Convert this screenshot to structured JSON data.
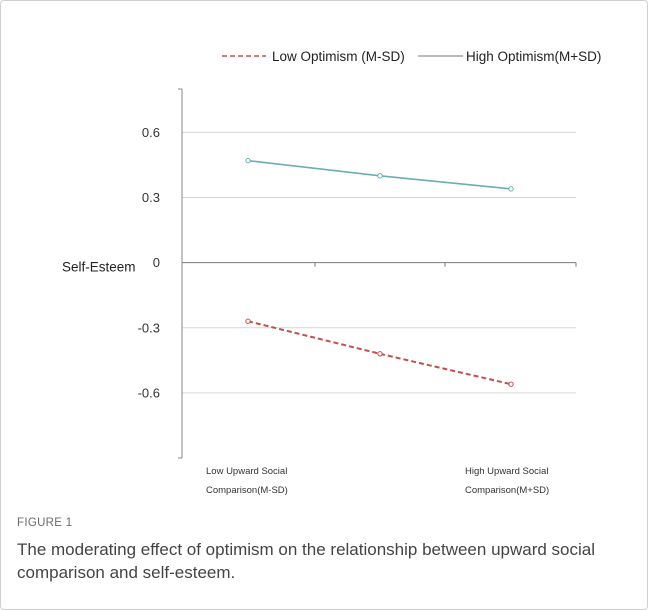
{
  "figure": {
    "label": "FIGURE 1",
    "caption": "The moderating effect of optimism on the relationship between upward social comparison and self-esteem."
  },
  "chart_data": {
    "type": "line",
    "ylabel": "Self-Esteem",
    "xlabel": "",
    "ylim": [
      -0.9,
      0.8
    ],
    "yticks": [
      0.6,
      0.3,
      0,
      -0.3,
      -0.6
    ],
    "ytick_labels": [
      "0.6",
      "0.3",
      "0",
      "-0.3",
      "-0.6"
    ],
    "categories": [
      [
        "Low Upward Social",
        "Comparison(M-SD)"
      ],
      [
        "",
        ""
      ],
      [
        "High Upward Social",
        "Comparison(M+SD)"
      ]
    ],
    "legend_position": "top",
    "series": [
      {
        "name": "Low Optimism (M-SD)",
        "style": "dashed",
        "color": "#c0504d",
        "values": [
          -0.27,
          -0.42,
          -0.56
        ]
      },
      {
        "name": "High Optimism(M+SD)",
        "style": "solid",
        "color": "#6aaeb0",
        "values": [
          0.47,
          0.4,
          0.34
        ]
      }
    ],
    "grid": true
  }
}
